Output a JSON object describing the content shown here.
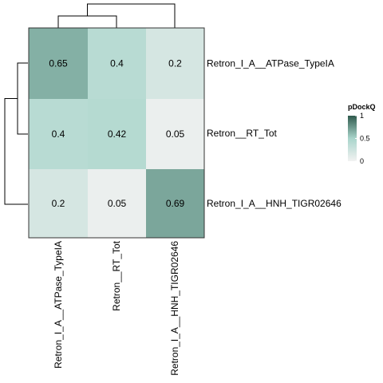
{
  "chart_data": {
    "type": "heatmap",
    "rows": [
      "Retron_I_A__ATPase_TypeIA",
      "Retron__RT_Tot",
      "Retron_I_A__HNH_TIGR02646"
    ],
    "columns": [
      "Retron_I_A__ATPase_TypeIA",
      "Retron__RT_Tot",
      "Retron_I_A__HNH_TIGR02646"
    ],
    "values": [
      [
        0.65,
        0.4,
        0.2
      ],
      [
        0.4,
        0.42,
        0.05
      ],
      [
        0.2,
        0.05,
        0.69
      ]
    ],
    "value_labels": [
      [
        "0.65",
        "0.4",
        "0.2"
      ],
      [
        "0.4",
        "0.42",
        "0.05"
      ],
      [
        "0.2",
        "0.05",
        "0.69"
      ]
    ],
    "legend": {
      "title": "pDockQ",
      "range": [
        0,
        1
      ],
      "ticks": [
        "1",
        "0.5",
        "0"
      ],
      "tick_values": [
        1,
        0.5,
        0
      ],
      "placement": "right"
    },
    "colors": {
      "low": "#f2f2f2",
      "mid": "#a9d5cb",
      "high": "#2f5a4d"
    },
    "dendrogram": {
      "clusters": [
        [
          "Retron_I_A__ATPase_TypeIA",
          "Retron__RT_Tot"
        ],
        [
          "Retron_I_A__HNH_TIGR02646"
        ]
      ],
      "on_rows": true,
      "on_columns": true
    },
    "title": "",
    "xlabel": "",
    "ylabel": ""
  }
}
